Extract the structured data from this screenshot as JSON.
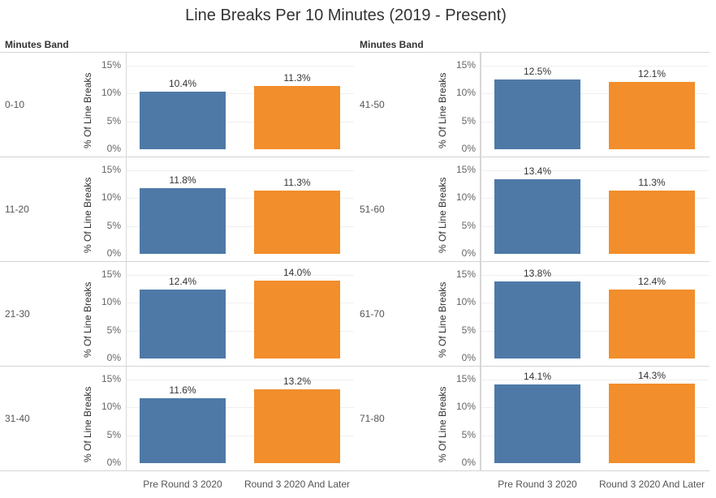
{
  "title": "Line Breaks Per 10 Minutes (2019 - Present)",
  "header_label": "Minutes Band",
  "colors": {
    "series1": "#4e79a7",
    "series2": "#f28e2b",
    "grid": "#efefef",
    "divider": "#d4d4d4"
  },
  "chart_data": {
    "type": "bar",
    "ylabel": "% Of Line Breaks",
    "yticks": [
      "15%",
      "10%",
      "5%",
      "0%"
    ],
    "ylim": [
      0,
      15
    ],
    "categories": [
      "Pre Round 3 2020",
      "Round 3 2020 And Later"
    ],
    "panels": [
      {
        "band": "0-10",
        "values": [
          10.4,
          11.3
        ],
        "labels": [
          "10.4%",
          "11.3%"
        ]
      },
      {
        "band": "11-20",
        "values": [
          11.8,
          11.3
        ],
        "labels": [
          "11.8%",
          "11.3%"
        ]
      },
      {
        "band": "21-30",
        "values": [
          12.4,
          14.0
        ],
        "labels": [
          "12.4%",
          "14.0%"
        ]
      },
      {
        "band": "31-40",
        "values": [
          11.6,
          13.2
        ],
        "labels": [
          "11.6%",
          "13.2%"
        ]
      },
      {
        "band": "41-50",
        "values": [
          12.5,
          12.1
        ],
        "labels": [
          "12.5%",
          "12.1%"
        ]
      },
      {
        "band": "51-60",
        "values": [
          13.4,
          11.3
        ],
        "labels": [
          "13.4%",
          "11.3%"
        ]
      },
      {
        "band": "61-70",
        "values": [
          13.8,
          12.4
        ],
        "labels": [
          "13.8%",
          "12.4%"
        ]
      },
      {
        "band": "71-80",
        "values": [
          14.1,
          14.3
        ],
        "labels": [
          "14.1%",
          "14.3%"
        ]
      }
    ]
  }
}
